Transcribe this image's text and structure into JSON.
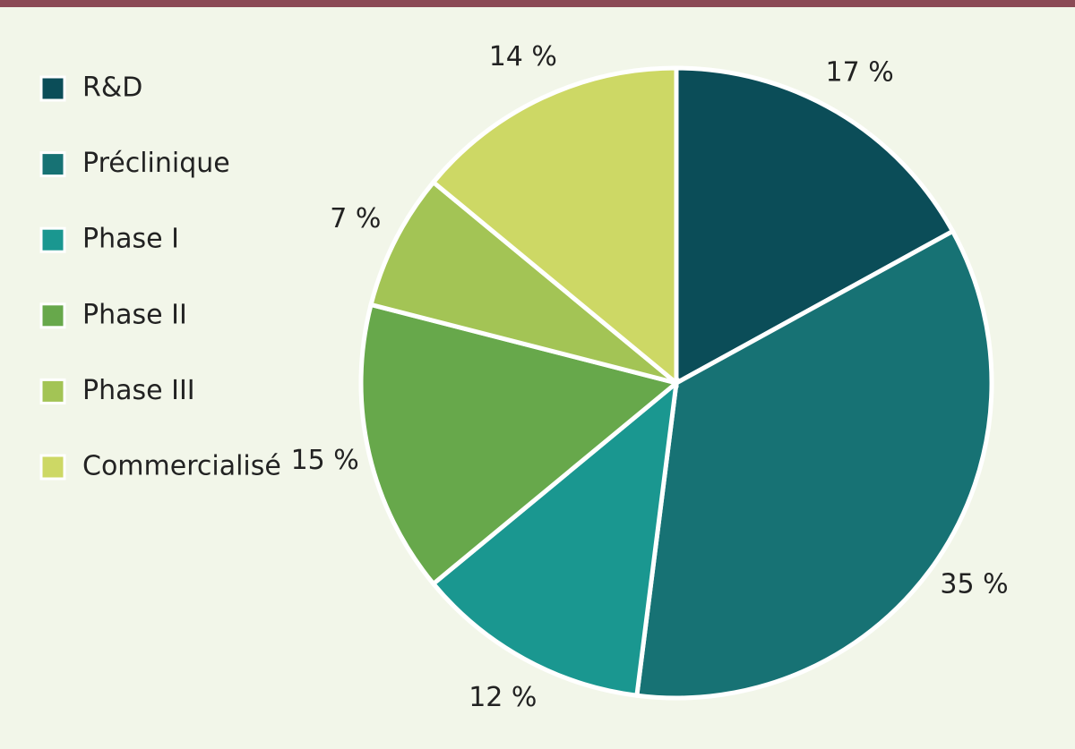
{
  "chart_data": {
    "type": "pie",
    "categories": [
      "R&D",
      "Préclinique",
      "Phase I",
      "Phase II",
      "Phase III",
      "Commercialisé"
    ],
    "values": [
      17,
      35,
      12,
      15,
      7,
      14
    ],
    "value_labels": [
      "17 %",
      "35 %",
      "12 %",
      "15 %",
      "7 %",
      "14 %"
    ],
    "colors": [
      "#0b4d58",
      "#177274",
      "#1a9790",
      "#67a84b",
      "#a3c455",
      "#cdd865"
    ],
    "legend": "top-left"
  }
}
